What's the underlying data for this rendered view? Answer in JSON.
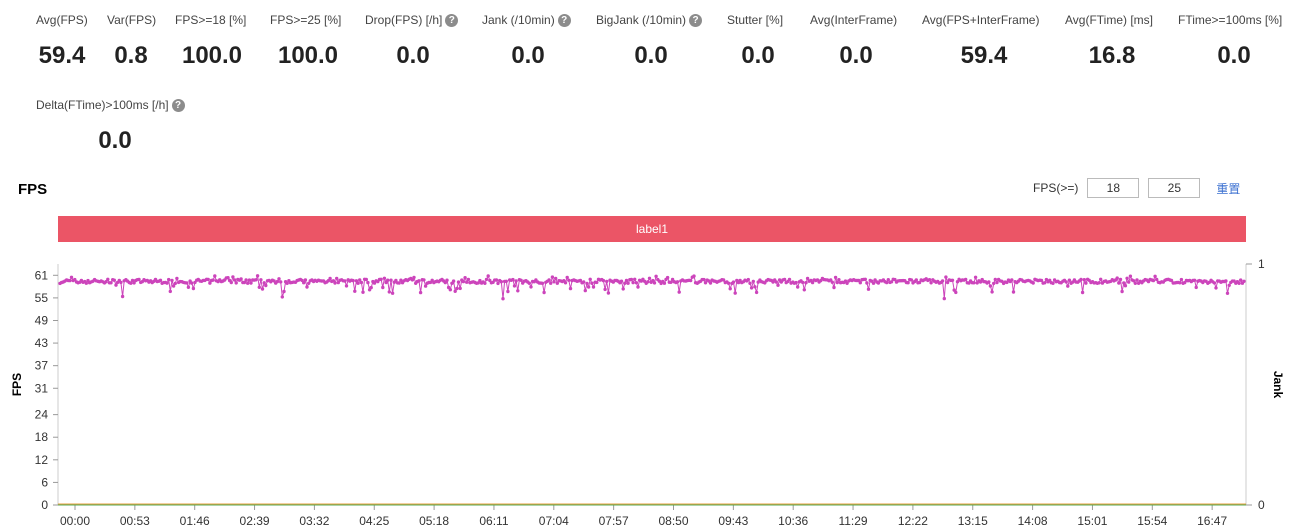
{
  "metrics": [
    {
      "label": "Avg(FPS)",
      "value": "59.4",
      "help": false
    },
    {
      "label": "Var(FPS)",
      "value": "0.8",
      "help": false
    },
    {
      "label": "FPS>=18 [%]",
      "value": "100.0",
      "help": false
    },
    {
      "label": "FPS>=25 [%]",
      "value": "100.0",
      "help": false
    },
    {
      "label": "Drop(FPS) [/h]",
      "value": "0.0",
      "help": true
    },
    {
      "label": "Jank (/10min)",
      "value": "0.0",
      "help": true
    },
    {
      "label": "BigJank (/10min)",
      "value": "0.0",
      "help": true
    },
    {
      "label": "Stutter [%]",
      "value": "0.0",
      "help": false
    },
    {
      "label": "Avg(InterFrame)",
      "value": "0.0",
      "help": false
    },
    {
      "label": "Avg(FPS+InterFrame)",
      "value": "59.4",
      "help": false
    },
    {
      "label": "Avg(FTime) [ms]",
      "value": "16.8",
      "help": false
    },
    {
      "label": "FTime>=100ms [%]",
      "value": "0.0",
      "help": false
    },
    {
      "label": "Delta(FTime)>100ms [/h]",
      "value": "0.0",
      "help": true
    }
  ],
  "help_glyph": "?",
  "section_title": "FPS",
  "fps_filter": {
    "label": "FPS(>=)",
    "value1": "18",
    "value2": "25",
    "reset_label": "重置"
  },
  "label_bar": {
    "text": "label1",
    "color": "#eb5566"
  },
  "chart_data": {
    "type": "scatter",
    "x_tick_labels": [
      "00:00",
      "00:53",
      "01:46",
      "02:39",
      "03:32",
      "04:25",
      "05:18",
      "06:11",
      "07:04",
      "07:57",
      "08:50",
      "09:43",
      "10:36",
      "11:29",
      "12:22",
      "13:15",
      "14:08",
      "15:01",
      "15:54",
      "16:47"
    ],
    "y_ticks": [
      0,
      6,
      12,
      18,
      24,
      31,
      37,
      43,
      49,
      55,
      61
    ],
    "ylim": [
      0,
      64
    ],
    "ylabel": "FPS",
    "y2label": "Jank",
    "y2_ticks": [
      0,
      1
    ],
    "series": [
      {
        "color": "#cc44bb",
        "baseline": 59.4,
        "min_observed": 54,
        "max_observed": 61
      },
      {
        "color": "#e8a040",
        "constant": 0
      },
      {
        "color": "#55aa55",
        "constant": 0
      }
    ]
  }
}
